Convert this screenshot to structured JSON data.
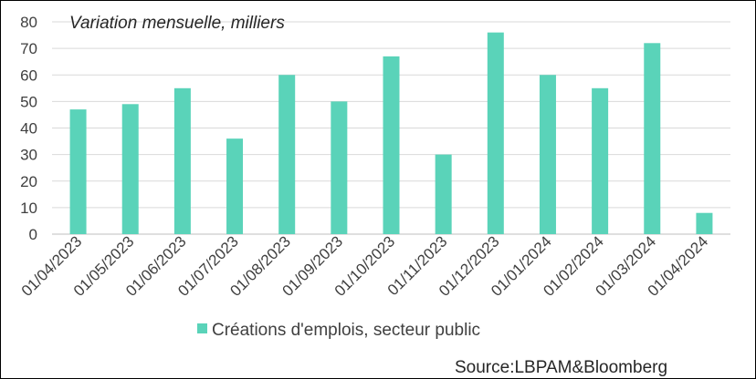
{
  "chart_data": {
    "type": "bar",
    "subtitle": "Variation mensuelle, milliers",
    "categories": [
      "01/04/2023",
      "01/05/2023",
      "01/06/2023",
      "01/07/2023",
      "01/08/2023",
      "01/09/2023",
      "01/10/2023",
      "01/11/2023",
      "01/12/2023",
      "01/01/2024",
      "01/02/2024",
      "01/03/2024",
      "01/04/2024"
    ],
    "series": [
      {
        "name": "Créations d'emplois, secteur public",
        "values": [
          47,
          49,
          55,
          36,
          60,
          50,
          67,
          30,
          76,
          60,
          55,
          72,
          8
        ],
        "color": "#5ad3b9"
      }
    ],
    "ylim": [
      0,
      80
    ],
    "yticks": [
      0,
      10,
      20,
      30,
      40,
      50,
      60,
      70,
      80
    ],
    "grid": true,
    "legend": "bottom",
    "xlabel": "",
    "ylabel": ""
  },
  "source": "Source:LBPAM&Bloomberg",
  "colors": {
    "grid": "#d9d9d9",
    "axis": "#bfbfbf"
  }
}
